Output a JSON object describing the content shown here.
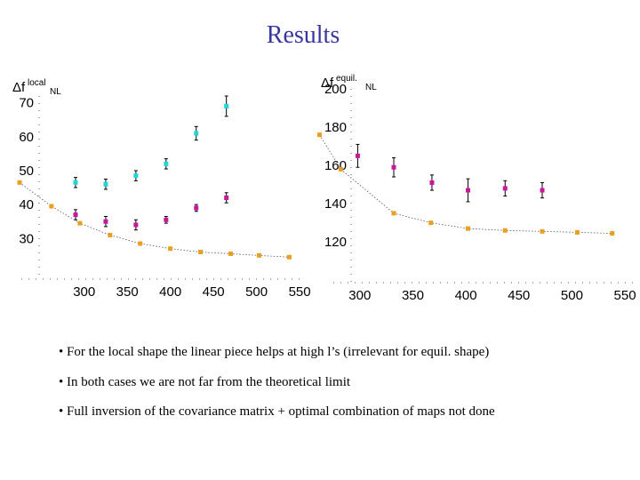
{
  "title": "Results",
  "chart_data": [
    {
      "type": "scatter",
      "title": "",
      "ylabel_main": "Δf",
      "ylabel_sup": "local",
      "ylabel_sub": "NL",
      "xlim": [
        225,
        553
      ],
      "ylim": [
        23,
        72
      ],
      "xticks": [
        300,
        350,
        400,
        450,
        500,
        550
      ],
      "yticks": [
        30,
        40,
        50,
        60,
        70
      ],
      "series": [
        {
          "name": "cyan",
          "color": "#1fd6d6",
          "x": [
            290,
            325,
            360,
            395,
            430,
            465
          ],
          "y": [
            46.5,
            46,
            48.5,
            52,
            61,
            69
          ],
          "err": [
            1.5,
            1.5,
            1.5,
            1.5,
            2,
            3
          ]
        },
        {
          "name": "magenta",
          "color": "#c8189a",
          "x": [
            290,
            325,
            360,
            395,
            430,
            465
          ],
          "y": [
            37,
            35,
            34,
            35.5,
            39,
            42
          ],
          "err": [
            1.5,
            1.5,
            1.5,
            1,
            1,
            1.5
          ]
        },
        {
          "name": "limit",
          "color": "#e8a020",
          "line": true,
          "x": [
            225,
            262,
            295,
            330,
            365,
            400,
            435,
            470,
            503,
            538
          ],
          "y": [
            46.5,
            39.5,
            34.5,
            31,
            28.5,
            27,
            26,
            25.5,
            25,
            24.5
          ]
        }
      ]
    },
    {
      "type": "scatter",
      "title": "",
      "ylabel_main": "Δf",
      "ylabel_sup": "equil.",
      "ylabel_sub": "NL",
      "xlim": [
        275,
        560
      ],
      "ylim": [
        108,
        200
      ],
      "xticks": [
        300,
        350,
        400,
        450,
        500,
        550
      ],
      "yticks": [
        120,
        140,
        160,
        180,
        200
      ],
      "series": [
        {
          "name": "magenta",
          "color": "#c8189a",
          "x": [
            298,
            332,
            368,
            402,
            437,
            472
          ],
          "y": [
            165,
            159,
            151,
            147,
            148,
            147
          ],
          "err": [
            6,
            5,
            4,
            6,
            4,
            4
          ]
        },
        {
          "name": "limit",
          "color": "#e8a020",
          "line": true,
          "x": [
            262,
            282,
            332,
            367,
            402,
            437,
            472,
            505,
            538
          ],
          "y": [
            176,
            158,
            135,
            130,
            127,
            126,
            125.5,
            125,
            124.5
          ]
        }
      ]
    }
  ],
  "bullets": [
    "For the local shape the linear piece helps at high l’s (irrelevant for equil. shape)",
    "In both cases we are not far from the theoretical limit",
    "Full inversion of the covariance matrix + optimal combination of maps not done"
  ],
  "bullet_char": "•"
}
